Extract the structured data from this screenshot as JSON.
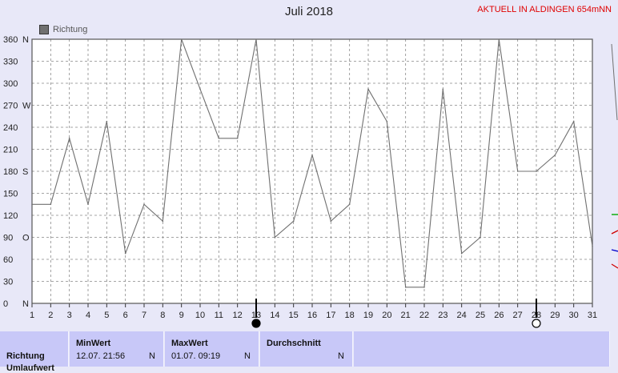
{
  "header": {
    "title": "Juli 2018",
    "aktuell": "AKTUELL IN ALDINGEN 654mNN"
  },
  "legend": {
    "label": "Richtung",
    "color": "#707070"
  },
  "chart_data": {
    "type": "line",
    "title": "Juli 2018",
    "x": [
      1,
      2,
      3,
      4,
      5,
      6,
      7,
      8,
      9,
      10,
      11,
      12,
      13,
      14,
      15,
      16,
      17,
      18,
      19,
      20,
      21,
      22,
      23,
      24,
      25,
      26,
      27,
      28,
      29,
      30,
      31
    ],
    "xticks": [
      "1",
      "2",
      "3",
      "4",
      "5",
      "6",
      "7",
      "8",
      "9",
      "10",
      "11",
      "12",
      "13",
      "14",
      "15",
      "16",
      "17",
      "18",
      "19",
      "20",
      "21",
      "22",
      "23",
      "24",
      "25",
      "26",
      "27",
      "28",
      "29",
      "30",
      "31"
    ],
    "ylim": [
      0,
      360
    ],
    "yticks": [
      0,
      30,
      60,
      90,
      120,
      150,
      180,
      210,
      240,
      270,
      300,
      330,
      360
    ],
    "ytick_labels": [
      "0",
      "30",
      "60",
      "90",
      "120",
      "150",
      "180",
      "210",
      "240",
      "270",
      "300",
      "330",
      "360"
    ],
    "compass_labels": [
      {
        "value": 0,
        "text": "N"
      },
      {
        "value": 90,
        "text": "O"
      },
      {
        "value": 180,
        "text": "S"
      },
      {
        "value": 270,
        "text": "W"
      },
      {
        "value": 360,
        "text": "N"
      }
    ],
    "grid": true,
    "series": [
      {
        "name": "Richtung",
        "color": "#707070",
        "points": [
          [
            1,
            135
          ],
          [
            2,
            135
          ],
          [
            3,
            225
          ],
          [
            4,
            135
          ],
          [
            5,
            248
          ],
          [
            6,
            68
          ],
          [
            7,
            135
          ],
          [
            8,
            112
          ],
          [
            9,
            360
          ],
          [
            10,
            292
          ],
          [
            11,
            225
          ],
          [
            12,
            225
          ],
          [
            13,
            360
          ],
          [
            14,
            90
          ],
          [
            15,
            112
          ],
          [
            16,
            202
          ],
          [
            17,
            112
          ],
          [
            18,
            135
          ],
          [
            19,
            292
          ],
          [
            20,
            248
          ],
          [
            21,
            22
          ],
          [
            22,
            22
          ],
          [
            23,
            292
          ],
          [
            24,
            68
          ],
          [
            25,
            90
          ],
          [
            26,
            360
          ],
          [
            27,
            180
          ],
          [
            28,
            180
          ],
          [
            29,
            202
          ],
          [
            30,
            248
          ],
          [
            31,
            78
          ]
        ]
      }
    ],
    "moon_markers": [
      {
        "x": 13,
        "phase": "new-moon"
      },
      {
        "x": 28,
        "phase": "full-moon"
      }
    ]
  },
  "footer": {
    "row_label": "Richtung",
    "row_label_2": "Umlaufwert",
    "min": {
      "header": "MinWert",
      "value": "12.07.  21:56",
      "dir": "N"
    },
    "max": {
      "header": "MaxWert",
      "value": "01.07.  09:19",
      "dir": "N"
    },
    "avg": {
      "header": "Durchschnitt",
      "value": "",
      "dir": "N"
    }
  }
}
